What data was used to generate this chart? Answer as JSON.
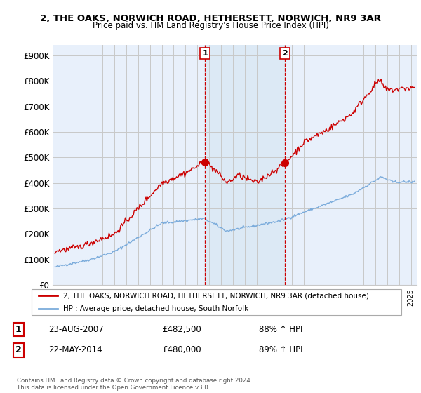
{
  "title": "2, THE OAKS, NORWICH ROAD, HETHERSETT, NORWICH, NR9 3AR",
  "subtitle": "Price paid vs. HM Land Registry's House Price Index (HPI)",
  "ylabel_ticks": [
    "£0",
    "£100K",
    "£200K",
    "£300K",
    "£400K",
    "£500K",
    "£600K",
    "£700K",
    "£800K",
    "£900K"
  ],
  "ytick_values": [
    0,
    100000,
    200000,
    300000,
    400000,
    500000,
    600000,
    700000,
    800000,
    900000
  ],
  "ylim": [
    0,
    940000
  ],
  "xlim_start": 1994.8,
  "xlim_end": 2025.5,
  "property_color": "#cc0000",
  "hpi_color": "#7aabdb",
  "shade_color": "#dce9f5",
  "legend_property": "2, THE OAKS, NORWICH ROAD, HETHERSETT, NORWICH, NR9 3AR (detached house)",
  "legend_hpi": "HPI: Average price, detached house, South Norfolk",
  "sale1_year": 2007.644,
  "sale1_price": 482500,
  "sale1_label": "1",
  "sale2_year": 2014.388,
  "sale2_price": 480000,
  "sale2_label": "2",
  "sale1_date": "23-AUG-2007",
  "sale1_pct": "88% ↑ HPI",
  "sale2_date": "22-MAY-2014",
  "sale2_pct": "89% ↑ HPI",
  "footnote": "Contains HM Land Registry data © Crown copyright and database right 2024.\nThis data is licensed under the Open Government Licence v3.0.",
  "background_color": "#ffffff",
  "plot_bg_color": "#e8f0fb",
  "grid_color": "#c8c8c8"
}
